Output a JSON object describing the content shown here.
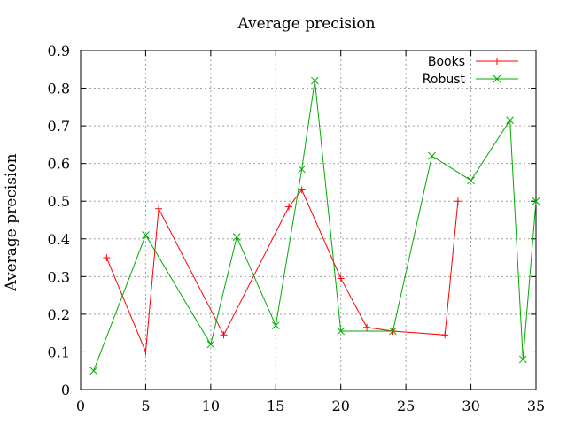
{
  "chart_data": {
    "type": "line",
    "title": "Average precision",
    "xlabel": "",
    "ylabel": "Average precision",
    "xlim": [
      0,
      35
    ],
    "ylim": [
      0,
      0.9
    ],
    "xticks": [
      "0",
      "5",
      "10",
      "15",
      "20",
      "25",
      "30",
      "35"
    ],
    "yticks": [
      "0",
      "0.1",
      "0.2",
      "0.3",
      "0.4",
      "0.5",
      "0.6",
      "0.7",
      "0.8",
      "0.9"
    ],
    "grid": true,
    "legend_position": "top-right",
    "series": [
      {
        "name": "Books",
        "color": "#ff0000",
        "marker": "plus",
        "x": [
          2,
          5,
          6,
          11,
          16,
          17,
          20,
          22,
          24,
          28,
          29
        ],
        "y": [
          0.35,
          0.1,
          0.48,
          0.145,
          0.485,
          0.53,
          0.295,
          0.165,
          0.155,
          0.145,
          0.5
        ]
      },
      {
        "name": "Robust",
        "color": "#00aa00",
        "marker": "cross",
        "x": [
          1,
          5,
          10,
          12,
          15,
          17,
          18,
          20,
          24,
          27,
          30,
          33,
          34,
          35
        ],
        "y": [
          0.05,
          0.41,
          0.12,
          0.405,
          0.17,
          0.585,
          0.82,
          0.155,
          0.155,
          0.62,
          0.555,
          0.715,
          0.08,
          0.5
        ]
      }
    ]
  }
}
